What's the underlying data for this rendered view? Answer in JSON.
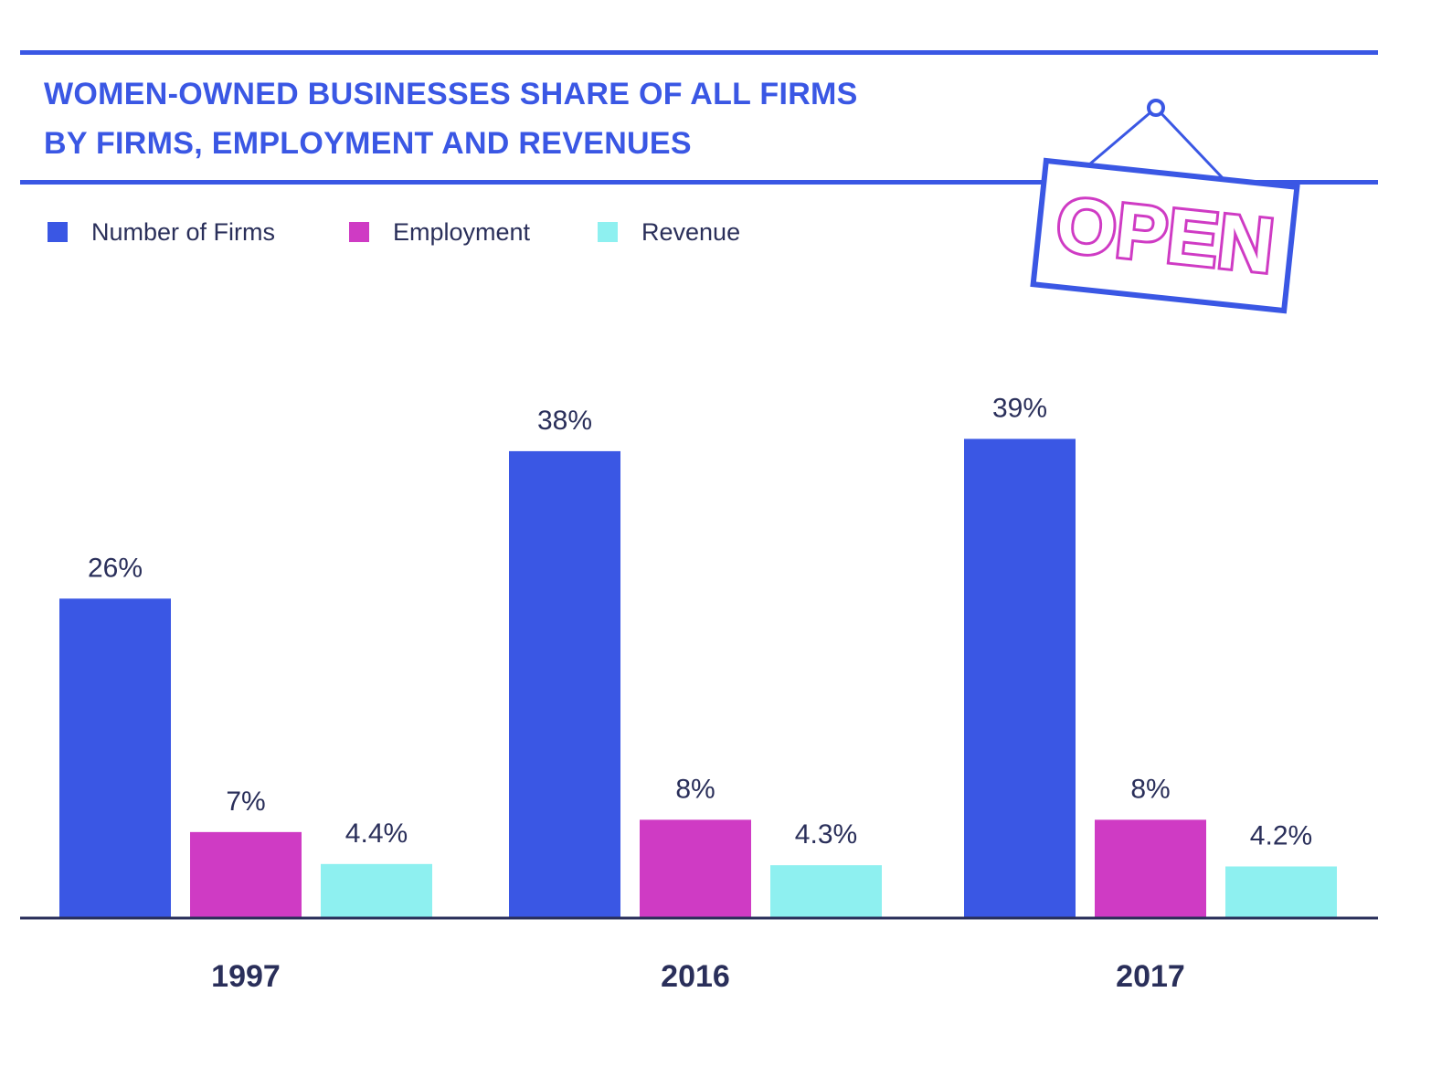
{
  "title": [
    "WOMEN-OWNED BUSINESSES SHARE OF ALL FIRMS",
    "BY FIRMS, EMPLOYMENT AND REVENUES"
  ],
  "sign_text": "OPEN",
  "colors": {
    "accent": "#3a57e4",
    "firms": "#3a57e4",
    "employment": "#cf3bc4",
    "revenue": "#8ef0f0",
    "axis": "#2a2f5a",
    "label": "#2a2f5a"
  },
  "chart_data": {
    "type": "bar",
    "categories": [
      "1997",
      "2016",
      "2017"
    ],
    "series": [
      {
        "name": "Number of Firms",
        "values": [
          26,
          38,
          39
        ],
        "labels": [
          "26%",
          "38%",
          "39%"
        ]
      },
      {
        "name": "Employment",
        "values": [
          7,
          8,
          8
        ],
        "labels": [
          "7%",
          "8%",
          "8%"
        ]
      },
      {
        "name": "Revenue",
        "values": [
          4.4,
          4.3,
          4.2
        ],
        "labels": [
          "4.4%",
          "4.3%",
          "4.2%"
        ]
      }
    ],
    "ylim": [
      0,
      40
    ],
    "legend_position": "top-left",
    "grid": false
  }
}
